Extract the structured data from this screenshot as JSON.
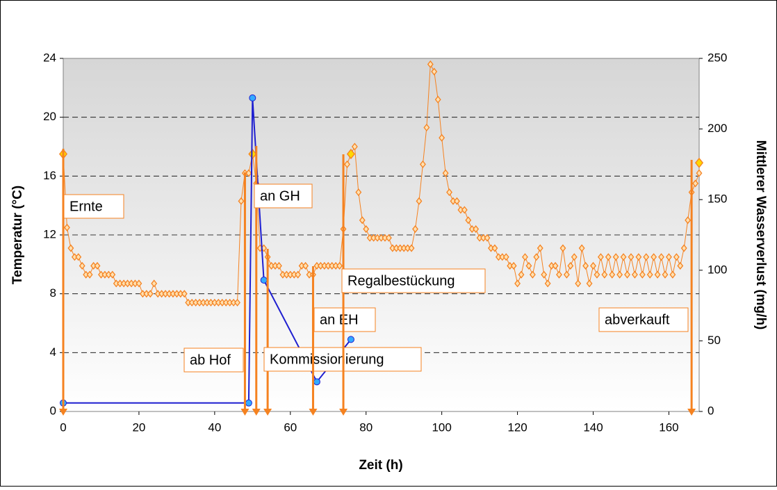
{
  "chart_data": {
    "type": "line",
    "xlabel": "Zeit (h)",
    "ylabel": "Temperatur (°C)",
    "y2label": "Mittlerer Wasserverlust (mg/h)",
    "xlim": [
      0,
      168
    ],
    "xticks": [
      0,
      20,
      40,
      60,
      80,
      100,
      120,
      140,
      160
    ],
    "ylim": [
      0,
      24
    ],
    "yticks": [
      0,
      4,
      8,
      12,
      16,
      20,
      24
    ],
    "y2lim": [
      0,
      250
    ],
    "y2ticks": [
      0,
      50,
      100,
      150,
      200,
      250
    ],
    "grid": true,
    "series": [
      {
        "color": "#f58220",
        "marker": "diamond",
        "x": [
          0,
          1,
          2,
          3,
          4,
          5,
          6,
          7,
          8,
          9,
          10,
          11,
          12,
          13,
          14,
          15,
          16,
          17,
          18,
          19,
          20,
          21,
          22,
          23,
          24,
          25,
          26,
          27,
          28,
          29,
          30,
          31,
          32,
          33,
          34,
          35,
          36,
          37,
          38,
          39,
          40,
          41,
          42,
          43,
          44,
          45,
          46,
          47,
          48,
          49,
          50,
          51,
          52,
          53,
          54,
          55,
          56,
          57,
          58,
          59,
          60,
          61,
          62,
          63,
          64,
          65,
          66,
          67,
          68,
          69,
          70,
          71,
          72,
          73,
          74,
          75,
          76,
          77,
          78,
          79,
          80,
          81,
          82,
          83,
          84,
          85,
          86,
          87,
          88,
          89,
          90,
          91,
          92,
          93,
          94,
          95,
          96,
          97,
          98,
          99,
          100,
          101,
          102,
          103,
          104,
          105,
          106,
          107,
          108,
          109,
          110,
          111,
          112,
          113,
          114,
          115,
          116,
          117,
          118,
          119,
          120,
          121,
          122,
          123,
          124,
          125,
          126,
          127,
          128,
          129,
          130,
          131,
          132,
          133,
          134,
          135,
          136,
          137,
          138,
          139,
          140,
          141,
          142,
          143,
          144,
          145,
          146,
          147,
          148,
          149,
          150,
          151,
          152,
          153,
          154,
          155,
          156,
          157,
          158,
          159,
          160,
          161,
          162,
          163,
          164,
          165,
          166,
          167,
          168
        ],
        "values": [
          17.5,
          12.5,
          11.1,
          10.5,
          10.5,
          9.9,
          9.3,
          9.3,
          9.9,
          9.9,
          9.3,
          9.3,
          9.3,
          9.3,
          8.7,
          8.7,
          8.7,
          8.7,
          8.7,
          8.7,
          8.7,
          8.0,
          8.0,
          8.0,
          8.7,
          8.0,
          8.0,
          8.0,
          8.0,
          8.0,
          8.0,
          8.0,
          8.0,
          7.4,
          7.4,
          7.4,
          7.4,
          7.4,
          7.4,
          7.4,
          7.4,
          7.4,
          7.4,
          7.4,
          7.4,
          7.4,
          7.4,
          14.3,
          16.2,
          16.2,
          17.5,
          15.5,
          11.1,
          11.1,
          10.5,
          9.9,
          9.9,
          9.9,
          9.3,
          9.3,
          9.3,
          9.3,
          9.3,
          9.9,
          9.9,
          9.3,
          9.3,
          9.9,
          9.9,
          9.9,
          9.9,
          9.9,
          9.9,
          9.9,
          12.4,
          16.8,
          17.5,
          18.0,
          14.9,
          13.0,
          12.4,
          11.8,
          11.8,
          11.8,
          11.8,
          11.8,
          11.8,
          11.1,
          11.1,
          11.1,
          11.1,
          11.1,
          11.1,
          12.4,
          14.3,
          16.8,
          19.3,
          23.6,
          23.1,
          21.2,
          18.6,
          16.2,
          14.9,
          14.3,
          14.3,
          13.7,
          13.7,
          13.0,
          12.4,
          12.4,
          11.8,
          11.8,
          11.8,
          11.1,
          11.1,
          10.5,
          10.5,
          10.5,
          9.9,
          9.9,
          8.7,
          9.3,
          10.5,
          9.9,
          9.3,
          10.5,
          11.1,
          9.3,
          8.7,
          9.9,
          9.9,
          9.3,
          11.1,
          9.3,
          9.9,
          10.5,
          8.7,
          11.1,
          9.9,
          8.7,
          9.9,
          9.3,
          10.5,
          9.3,
          10.5,
          9.3,
          10.5,
          9.3,
          10.5,
          9.3,
          10.5,
          9.3,
          10.5,
          9.3,
          10.5,
          9.3,
          10.5,
          9.3,
          10.5,
          9.3,
          10.5,
          9.3,
          10.5,
          9.9,
          11.1,
          13.0,
          14.9,
          15.5,
          16.2
        ]
      },
      {
        "color": "#ffd700",
        "marker": "diamond",
        "x": [
          0,
          50,
          76,
          168
        ],
        "values": [
          17.5,
          17.5,
          17.5,
          16.9
        ]
      },
      {
        "color": "#1f1fd0",
        "marker": "circle",
        "axis": "y2",
        "x": [
          0,
          49,
          50,
          53,
          67,
          76
        ],
        "values": [
          6,
          6,
          222,
          93,
          21,
          51
        ]
      }
    ],
    "annotations": [
      {
        "text": "Ernte",
        "x": 0
      },
      {
        "text": "ab Hof",
        "x": 48
      },
      {
        "text": "an GH",
        "x": 51
      },
      {
        "text": "Kommissionierung",
        "x": 54
      },
      {
        "text": "an EH",
        "x": 66
      },
      {
        "text": "Regalbestückung",
        "x": 74
      },
      {
        "text": "abverkauft",
        "x": 166
      }
    ]
  }
}
